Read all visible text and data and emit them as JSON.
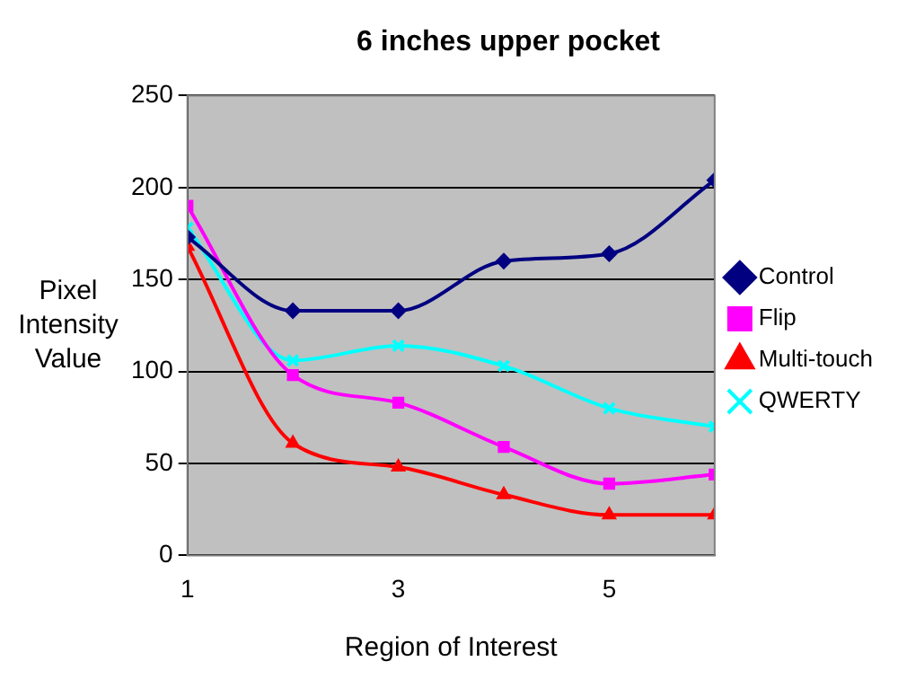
{
  "chart_data": {
    "type": "line",
    "title": "6 inches upper pocket",
    "xlabel": "Region of Interest",
    "ylabel": "Pixel Intensity Value",
    "x": [
      1,
      2,
      3,
      4,
      5,
      6
    ],
    "xlim": [
      1,
      6
    ],
    "xticks": [
      1,
      3,
      5
    ],
    "ylim": [
      0,
      250
    ],
    "yticks": [
      0,
      50,
      100,
      150,
      200,
      250
    ],
    "grid": "y",
    "legend": "right",
    "series": [
      {
        "name": "Control",
        "color": "#000080",
        "marker": "diamond",
        "values": [
          173,
          133,
          133,
          160,
          164,
          204
        ]
      },
      {
        "name": "Flip",
        "color": "#ff00ff",
        "marker": "square",
        "values": [
          190,
          98,
          83,
          59,
          39,
          44
        ]
      },
      {
        "name": "Multi-touch",
        "color": "#ff0000",
        "marker": "triangle",
        "values": [
          168,
          61,
          48,
          33,
          22,
          22
        ]
      },
      {
        "name": "QWERTY",
        "color": "#00ffff",
        "marker": "cross",
        "values": [
          178,
          106,
          114,
          103,
          80,
          70
        ]
      }
    ]
  }
}
